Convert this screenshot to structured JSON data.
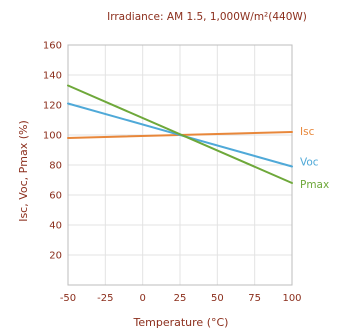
{
  "chart_data": {
    "type": "line",
    "title": "Irradiance: AM 1.5, 1,000W/m²(440W)",
    "xlabel": "Temperature (°C)",
    "ylabel": "Isc, Voc, Pmax (%)",
    "xlim": [
      -50,
      100
    ],
    "ylim": [
      0,
      160
    ],
    "xticks": [
      -50,
      -25,
      0,
      25,
      50,
      75,
      100
    ],
    "yticks": [
      20,
      40,
      60,
      80,
      100,
      120,
      140,
      160
    ],
    "grid": true,
    "x": [
      -50,
      100
    ],
    "series": [
      {
        "name": "Isc",
        "color": "#e8873a",
        "values": [
          98,
          102
        ]
      },
      {
        "name": "Voc",
        "color": "#4fa9d8",
        "values": [
          121,
          79
        ]
      },
      {
        "name": "Pmax",
        "color": "#6ea83a",
        "values": [
          133,
          68
        ]
      }
    ]
  }
}
